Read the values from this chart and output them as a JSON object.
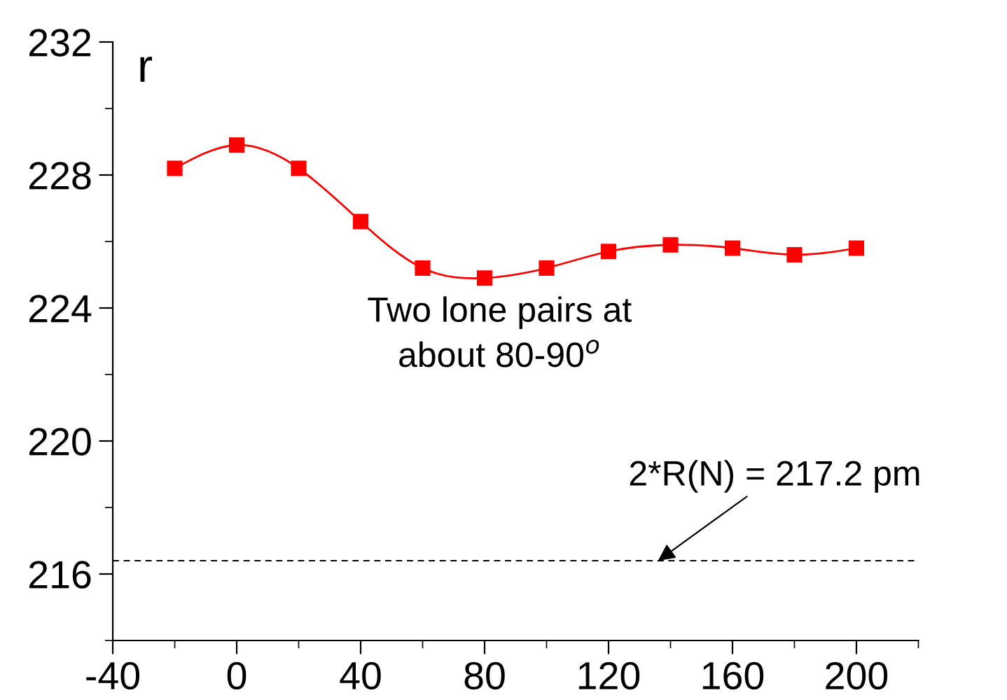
{
  "chart_data": {
    "type": "line",
    "ylabel": "r",
    "x": [
      -20,
      0,
      20,
      40,
      60,
      80,
      100,
      120,
      140,
      160,
      180,
      200
    ],
    "series": [
      {
        "color": "#ff0000",
        "values": [
          228.2,
          228.9,
          228.2,
          226.6,
          225.2,
          224.9,
          225.2,
          225.7,
          225.9,
          225.8,
          225.6,
          225.8
        ]
      }
    ],
    "marker": "square",
    "line_style": "solid",
    "xlim": [
      -40,
      220
    ],
    "xticks": [
      -40,
      0,
      40,
      80,
      120,
      160,
      200
    ],
    "ylim": [
      214,
      232
    ],
    "yticks": [
      216,
      220,
      224,
      228,
      232
    ],
    "ref_lines": [
      {
        "axis": "y",
        "value": 216.4,
        "color": "#000000",
        "line_style": "dashed"
      }
    ],
    "annotations": [
      "Two lone pairs at\nabout 80-90$^{o}$",
      {
        "text": "2*R(N) = 217.2 pm",
        "x": 136,
        "y": 216.4
      }
    ],
    "grid": false,
    "legend": false
  }
}
